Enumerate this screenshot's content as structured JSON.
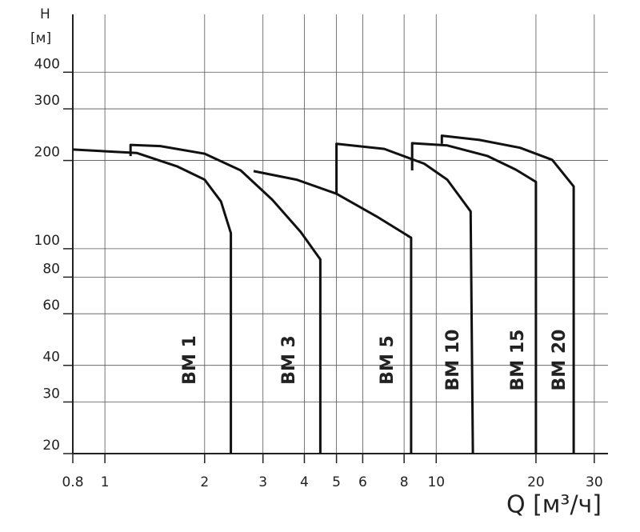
{
  "chart_data": {
    "type": "line",
    "y_label_top": "H",
    "y_label_unit": "[м]",
    "x_label": "Q [м³/ч]",
    "xscale": "log",
    "yscale": "log",
    "grid": true,
    "xlim": [
      0.8,
      33
    ],
    "ylim": [
      20,
      630
    ],
    "xticks": [
      0.8,
      1,
      2,
      3,
      4,
      5,
      6,
      8,
      10,
      20,
      30
    ],
    "yticks": [
      20,
      30,
      40,
      60,
      80,
      100,
      200,
      300,
      400
    ],
    "series": [
      {
        "name": "BM 1",
        "color": "#111111",
        "x": [
          0.8,
          1.25,
          1.65,
          2,
          2.24,
          2.4,
          2.4
        ],
        "values": [
          218,
          212,
          191,
          172,
          145,
          113,
          20
        ]
      },
      {
        "name": "BM 3",
        "color": "#111111",
        "x": [
          1.195,
          1.195,
          1.47,
          2,
          2.57,
          3.2,
          3.9,
          4.47,
          4.47
        ],
        "values": [
          207,
          226,
          224,
          211,
          185,
          147,
          114,
          92,
          20
        ]
      },
      {
        "name": "BM 5",
        "color": "#111111",
        "x": [
          2.81,
          3.79,
          5,
          6.6,
          8.4,
          8.4
        ],
        "values": [
          184,
          172,
          154,
          129,
          109,
          20
        ]
      },
      {
        "name": "BM 10",
        "color": "#111111",
        "x": [
          5,
          5,
          6.97,
          9.2,
          10.8,
          12.7,
          12.9
        ],
        "values": [
          154,
          228,
          219,
          195,
          172,
          134,
          20
        ]
      },
      {
        "name": "BM 15",
        "color": "#111111",
        "x": [
          8.46,
          8.46,
          10.8,
          14.3,
          17.4,
          20,
          20
        ],
        "values": [
          185,
          229,
          225,
          207,
          186,
          169,
          20
        ]
      },
      {
        "name": "BM 20",
        "color": "#111111",
        "x": [
          10.4,
          10.4,
          13.5,
          17.9,
          22.4,
          26,
          26
        ],
        "values": [
          228,
          243,
          235,
          221,
          201,
          163,
          20
        ]
      }
    ]
  }
}
